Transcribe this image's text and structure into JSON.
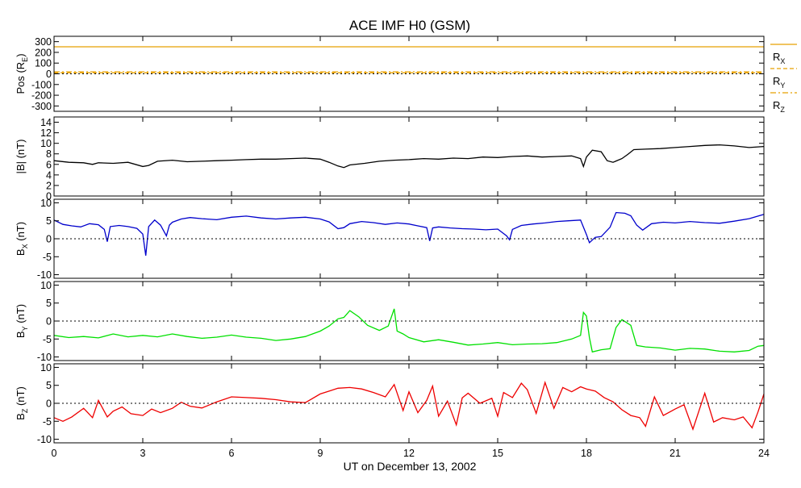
{
  "title": "ACE IMF H0 (GSM)",
  "xlabel": "UT on December 13, 2002",
  "chart_data": {
    "type": "line",
    "title": "ACE IMF H0 (GSM)",
    "xlabel": "UT on December 13, 2002",
    "xlim": [
      0,
      24
    ],
    "x_ticks": [
      0,
      3,
      6,
      9,
      12,
      15,
      18,
      21,
      24
    ],
    "x_tick_labels": [
      "0",
      "3",
      "6",
      "9",
      "12",
      "15",
      "18",
      "21",
      "24"
    ],
    "panels": [
      {
        "ylabel": "Pos (Rₑ)",
        "ylabel_main": "Pos (R",
        "ylabel_sub": "E",
        "ylabel_tail": ")",
        "ylim": [
          -350,
          350
        ],
        "yticks": [
          300,
          200,
          100,
          0,
          -100,
          -200,
          -300
        ],
        "ytick_labels": [
          "300",
          "200",
          "100",
          "0",
          "-100",
          "-200",
          "-300"
        ],
        "zero_line": true,
        "series": [
          {
            "name": "R_X",
            "label_main": "R",
            "label_sub": "X",
            "color": "#e8a000",
            "style": "solid",
            "x": [
              0,
              24
            ],
            "values": [
              252,
              252
            ]
          },
          {
            "name": "R_Y",
            "label_main": "R",
            "label_sub": "Y",
            "color": "#e8a000",
            "style": "dashed",
            "x": [
              0,
              24
            ],
            "values": [
              10,
              10
            ]
          },
          {
            "name": "R_Z",
            "label_main": "R",
            "label_sub": "Z",
            "color": "#e8a000",
            "style": "dashdot",
            "x": [
              0,
              24
            ],
            "values": [
              18,
              18
            ]
          }
        ]
      },
      {
        "ylabel": "|B| (nT)",
        "ylabel_main": "|B| (nT)",
        "ylabel_sub": "",
        "ylabel_tail": "",
        "ylim": [
          0,
          15
        ],
        "yticks": [
          14,
          12,
          10,
          8,
          6,
          4,
          2,
          0
        ],
        "ytick_labels": [
          "14",
          "12",
          "10",
          "8",
          "6",
          "4",
          "2",
          "0"
        ],
        "zero_line": false,
        "series": [
          {
            "name": "|B|",
            "color": "#000000",
            "style": "solid",
            "x": [
              0,
              0.5,
              1.0,
              1.3,
              1.5,
              2.0,
              2.5,
              3.0,
              3.2,
              3.5,
              4.0,
              4.5,
              5.0,
              5.5,
              6.0,
              6.5,
              7.0,
              7.5,
              8.0,
              8.5,
              9.0,
              9.3,
              9.6,
              9.8,
              10.0,
              10.5,
              11.0,
              11.5,
              12.0,
              12.5,
              13.0,
              13.5,
              14.0,
              14.5,
              15.0,
              15.5,
              16.0,
              16.5,
              17.0,
              17.5,
              17.8,
              17.9,
              18.0,
              18.2,
              18.5,
              18.7,
              18.9,
              19.2,
              19.4,
              19.6,
              20.0,
              20.5,
              21.0,
              21.5,
              22.0,
              22.5,
              23.0,
              23.5,
              24.0
            ],
            "values": [
              6.7,
              6.4,
              6.3,
              6.0,
              6.3,
              6.2,
              6.4,
              5.6,
              5.8,
              6.6,
              6.8,
              6.5,
              6.6,
              6.7,
              6.8,
              6.9,
              7.0,
              7.0,
              7.1,
              7.2,
              7.0,
              6.4,
              5.7,
              5.4,
              5.9,
              6.2,
              6.6,
              6.8,
              6.9,
              7.1,
              7.0,
              7.2,
              7.1,
              7.4,
              7.3,
              7.5,
              7.6,
              7.4,
              7.5,
              7.6,
              7.1,
              5.6,
              7.4,
              8.7,
              8.4,
              6.7,
              6.4,
              7.1,
              7.9,
              8.8,
              8.9,
              9.0,
              9.2,
              9.4,
              9.6,
              9.7,
              9.5,
              9.2,
              9.4
            ]
          }
        ]
      },
      {
        "ylabel": "B_X (nT)",
        "ylabel_main": "B",
        "ylabel_sub": "X",
        "ylabel_tail": " (nT)",
        "ylim": [
          -11,
          11
        ],
        "yticks": [
          10,
          5,
          0,
          -5,
          -10
        ],
        "ytick_labels": [
          "10",
          "5",
          "0",
          "-5",
          "-10"
        ],
        "zero_line": true,
        "series": [
          {
            "name": "B_X",
            "color": "#0000cc",
            "style": "solid",
            "x": [
              0,
              0.3,
              0.6,
              0.9,
              1.2,
              1.5,
              1.7,
              1.8,
              1.9,
              2.2,
              2.5,
              2.8,
              3.0,
              3.1,
              3.2,
              3.4,
              3.6,
              3.8,
              3.9,
              4.0,
              4.3,
              4.6,
              5.0,
              5.5,
              6.0,
              6.5,
              7.0,
              7.5,
              8.0,
              8.5,
              9.0,
              9.3,
              9.6,
              9.8,
              10.0,
              10.4,
              10.8,
              11.2,
              11.6,
              12.0,
              12.3,
              12.6,
              12.7,
              12.8,
              13.0,
              13.4,
              13.8,
              14.2,
              14.6,
              15.0,
              15.3,
              15.4,
              15.5,
              15.8,
              16.2,
              16.6,
              17.0,
              17.4,
              17.8,
              18.0,
              18.1,
              18.3,
              18.5,
              18.8,
              19.0,
              19.3,
              19.5,
              19.7,
              19.9,
              20.2,
              20.6,
              21.0,
              21.5,
              22.0,
              22.5,
              23.0,
              23.5,
              24.0
            ],
            "values": [
              5.2,
              4.0,
              3.6,
              3.3,
              4.2,
              3.9,
              2.6,
              -0.8,
              3.4,
              3.7,
              3.4,
              2.9,
              1.3,
              -4.7,
              3.4,
              5.2,
              3.8,
              0.8,
              3.8,
              4.6,
              5.5,
              5.9,
              5.6,
              5.3,
              6.0,
              6.3,
              5.8,
              5.5,
              5.8,
              6.0,
              5.5,
              4.7,
              2.8,
              3.1,
              4.2,
              4.8,
              4.5,
              4.0,
              4.4,
              4.1,
              3.6,
              3.1,
              -0.6,
              3.0,
              3.3,
              3.0,
              2.8,
              2.7,
              2.5,
              2.7,
              0.8,
              -0.3,
              2.6,
              3.7,
              4.1,
              4.4,
              4.8,
              5.0,
              5.2,
              1.2,
              -1.1,
              0.4,
              0.6,
              3.2,
              7.3,
              7.1,
              6.4,
              3.8,
              2.4,
              4.2,
              4.6,
              4.4,
              4.8,
              4.5,
              4.3,
              4.9,
              5.6,
              6.8
            ]
          }
        ]
      },
      {
        "ylabel": "B_Y (nT)",
        "ylabel_main": "B",
        "ylabel_sub": "Y",
        "ylabel_tail": " (nT)",
        "ylim": [
          -11,
          11
        ],
        "yticks": [
          10,
          5,
          0,
          -5,
          -10
        ],
        "ytick_labels": [
          "10",
          "5",
          "0",
          "-5",
          "-10"
        ],
        "zero_line": true,
        "series": [
          {
            "name": "B_Y",
            "color": "#00e000",
            "style": "solid",
            "x": [
              0,
              0.5,
              1.0,
              1.5,
              2.0,
              2.5,
              3.0,
              3.5,
              4.0,
              4.5,
              5.0,
              5.5,
              6.0,
              6.5,
              7.0,
              7.5,
              8.0,
              8.5,
              9.0,
              9.3,
              9.6,
              9.8,
              10.0,
              10.3,
              10.6,
              11.0,
              11.3,
              11.5,
              11.6,
              11.8,
              12.0,
              12.5,
              13.0,
              13.5,
              14.0,
              14.5,
              15.0,
              15.5,
              16.0,
              16.5,
              17.0,
              17.5,
              17.8,
              17.9,
              18.0,
              18.1,
              18.2,
              18.5,
              18.8,
              19.0,
              19.2,
              19.5,
              19.7,
              20.0,
              20.5,
              21.0,
              21.5,
              22.0,
              22.5,
              23.0,
              23.5,
              23.8,
              24.0
            ],
            "values": [
              -4.0,
              -4.6,
              -4.3,
              -4.7,
              -3.6,
              -4.4,
              -4.0,
              -4.4,
              -3.6,
              -4.3,
              -4.8,
              -4.5,
              -3.9,
              -4.5,
              -4.8,
              -5.4,
              -5.0,
              -4.3,
              -2.8,
              -1.4,
              0.6,
              1.0,
              2.9,
              1.2,
              -1.2,
              -2.6,
              -1.4,
              3.4,
              -2.8,
              -3.6,
              -4.6,
              -5.8,
              -5.2,
              -5.9,
              -6.7,
              -6.4,
              -6.0,
              -6.6,
              -6.4,
              -6.3,
              -6.0,
              -5.0,
              -4.0,
              2.4,
              1.4,
              -4.6,
              -8.6,
              -8.0,
              -7.7,
              -1.8,
              0.4,
              -1.2,
              -6.8,
              -7.2,
              -7.5,
              -8.1,
              -7.6,
              -7.8,
              -8.4,
              -8.6,
              -8.2,
              -7.0,
              -6.8
            ]
          }
        ]
      },
      {
        "ylabel": "B_Z (nT)",
        "ylabel_main": "B",
        "ylabel_sub": "Z",
        "ylabel_tail": " (nT)",
        "ylim": [
          -11,
          11
        ],
        "yticks": [
          10,
          5,
          0,
          -5,
          -10
        ],
        "ytick_labels": [
          "10",
          "5",
          "0",
          "-5",
          "-10"
        ],
        "zero_line": true,
        "series": [
          {
            "name": "B_Z",
            "color": "#ee0000",
            "style": "solid",
            "x": [
              0,
              0.3,
              0.6,
              1.0,
              1.3,
              1.5,
              1.8,
              2.0,
              2.3,
              2.6,
              3.0,
              3.3,
              3.6,
              4.0,
              4.3,
              4.6,
              5.0,
              5.5,
              6.0,
              6.5,
              7.0,
              7.5,
              8.0,
              8.5,
              9.0,
              9.3,
              9.6,
              10.0,
              10.4,
              10.8,
              11.2,
              11.5,
              11.8,
              12.0,
              12.3,
              12.6,
              12.8,
              13.0,
              13.3,
              13.6,
              13.8,
              14.0,
              14.4,
              14.8,
              15.0,
              15.2,
              15.5,
              15.8,
              16.0,
              16.3,
              16.6,
              16.9,
              17.2,
              17.5,
              17.8,
              18.0,
              18.3,
              18.6,
              18.9,
              19.2,
              19.5,
              19.8,
              20.0,
              20.3,
              20.6,
              21.0,
              21.3,
              21.6,
              22.0,
              22.3,
              22.6,
              23.0,
              23.3,
              23.6,
              23.8,
              24.0
            ],
            "values": [
              -4.0,
              -5.0,
              -3.8,
              -1.4,
              -4.0,
              0.8,
              -3.8,
              -2.2,
              -1.0,
              -2.9,
              -3.4,
              -1.6,
              -2.6,
              -1.4,
              0.3,
              -0.8,
              -1.3,
              0.4,
              1.8,
              1.6,
              1.4,
              1.0,
              0.4,
              0.2,
              2.6,
              3.4,
              4.2,
              4.4,
              4.0,
              3.0,
              1.8,
              5.2,
              -2.0,
              3.2,
              -2.6,
              0.8,
              4.8,
              -3.6,
              0.6,
              -6.0,
              1.5,
              2.8,
              0.0,
              1.4,
              -3.6,
              3.0,
              1.6,
              5.6,
              3.8,
              -2.8,
              5.8,
              -1.4,
              4.4,
              3.2,
              4.6,
              4.0,
              3.4,
              1.6,
              0.4,
              -1.8,
              -3.4,
              -4.0,
              -6.4,
              1.8,
              -3.4,
              -1.6,
              -0.4,
              -7.2,
              2.8,
              -5.2,
              -4.0,
              -4.6,
              -3.8,
              -6.8,
              -2.4,
              2.6
            ]
          }
        ]
      }
    ]
  }
}
